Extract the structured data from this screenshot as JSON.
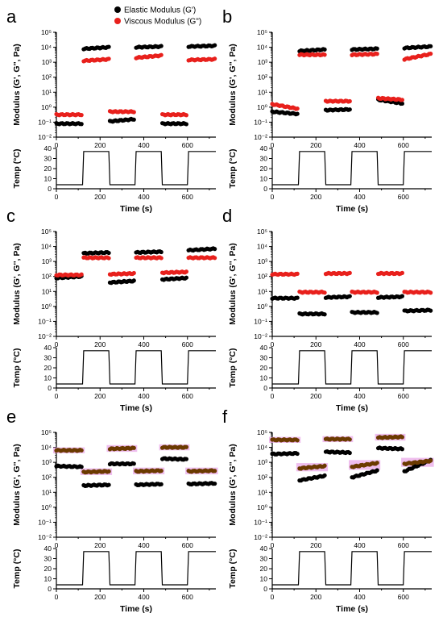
{
  "legend": {
    "elastic": "Elastic Modulus (G')",
    "viscous": "Viscous Modulus (G\")"
  },
  "colors": {
    "elastic": "#000000",
    "viscous": "#e8201c",
    "highlight": "#e9a8e8",
    "overlap": "#6b3a00"
  },
  "chart_data": [
    {
      "panel": "a",
      "type": "scatter",
      "xlabel": "Time (s)",
      "ylabel": "Modulus (G', G'', Pa)",
      "y2label": "Temp (°C)",
      "xlim": [
        0,
        730
      ],
      "ylim_log": [
        -2,
        5
      ],
      "temp_ylim": [
        0,
        40
      ],
      "xticks": [
        "0",
        "200",
        "400",
        "600"
      ],
      "yticks": [
        "10⁻²",
        "10⁻¹",
        "10⁰",
        "10¹",
        "10²",
        "10³",
        "10⁴",
        "10⁵"
      ],
      "temp_yticks": [
        "0",
        "10",
        "20",
        "30",
        "40"
      ],
      "highlight": false,
      "series": [
        {
          "name": "Elastic Modulus (G')",
          "segments": [
            [
              -1.1,
              -1.1
            ],
            [
              3.9,
              4.0
            ],
            [
              -0.95,
              -0.8
            ],
            [
              4.0,
              4.05
            ],
            [
              -1.1,
              -1.1
            ],
            [
              4.05,
              4.1
            ]
          ]
        },
        {
          "name": "Viscous Modulus (G\")",
          "segments": [
            [
              -0.5,
              -0.5
            ],
            [
              3.1,
              3.2
            ],
            [
              -0.3,
              -0.3
            ],
            [
              3.3,
              3.45
            ],
            [
              -0.5,
              -0.5
            ],
            [
              3.15,
              3.2
            ]
          ]
        }
      ],
      "temperature": [
        [
          0,
          4
        ],
        [
          120,
          4
        ],
        [
          125,
          37
        ],
        [
          240,
          37
        ],
        [
          245,
          4
        ],
        [
          360,
          4
        ],
        [
          365,
          37
        ],
        [
          480,
          37
        ],
        [
          485,
          4
        ],
        [
          600,
          4
        ],
        [
          605,
          37
        ],
        [
          730,
          37
        ]
      ]
    },
    {
      "panel": "b",
      "type": "scatter",
      "xlabel": "Time (s)",
      "ylabel": "Modulus (G', G'', Pa)",
      "y2label": "Temp (°C)",
      "xlim": [
        0,
        730
      ],
      "ylim_log": [
        -2,
        5
      ],
      "temp_ylim": [
        0,
        40
      ],
      "xticks": [
        "0",
        "200",
        "400",
        "600"
      ],
      "yticks": [
        "10⁻²",
        "10⁻¹",
        "10⁰",
        "10¹",
        "10²",
        "10³",
        "10⁴",
        "10⁵"
      ],
      "temp_yticks": [
        "0",
        "10",
        "20",
        "30",
        "40"
      ],
      "highlight": false,
      "series": [
        {
          "name": "Elastic Modulus (G')",
          "segments": [
            [
              -0.3,
              -0.45
            ],
            [
              3.75,
              3.85
            ],
            [
              -0.2,
              -0.15
            ],
            [
              3.85,
              3.9
            ],
            [
              0.5,
              0.25
            ],
            [
              3.95,
              4.05
            ]
          ]
        },
        {
          "name": "Viscous Modulus (G\")",
          "segments": [
            [
              0.2,
              -0.1
            ],
            [
              3.5,
              3.5
            ],
            [
              0.4,
              0.4
            ],
            [
              3.5,
              3.55
            ],
            [
              0.6,
              0.5
            ],
            [
              3.2,
              3.55
            ]
          ]
        }
      ],
      "temperature": [
        [
          0,
          4
        ],
        [
          120,
          4
        ],
        [
          125,
          37
        ],
        [
          240,
          37
        ],
        [
          245,
          4
        ],
        [
          360,
          4
        ],
        [
          365,
          37
        ],
        [
          480,
          37
        ],
        [
          485,
          4
        ],
        [
          600,
          4
        ],
        [
          605,
          37
        ],
        [
          730,
          37
        ]
      ]
    },
    {
      "panel": "c",
      "type": "scatter",
      "xlabel": "Time (s)",
      "ylabel": "Modulus (G', G'', Pa)",
      "y2label": "Temp (°C)",
      "xlim": [
        0,
        730
      ],
      "ylim_log": [
        -2,
        5
      ],
      "temp_ylim": [
        0,
        40
      ],
      "xticks": [
        "0",
        "200",
        "400",
        "600"
      ],
      "yticks": [
        "10⁻²",
        "10⁻¹",
        "10⁰",
        "10¹",
        "10²",
        "10³",
        "10⁴",
        "10⁵"
      ],
      "temp_yticks": [
        "0",
        "10",
        "20",
        "30",
        "40"
      ],
      "highlight": false,
      "series": [
        {
          "name": "Elastic Modulus (G')",
          "segments": [
            [
              1.9,
              2.0
            ],
            [
              3.55,
              3.6
            ],
            [
              1.6,
              1.7
            ],
            [
              3.6,
              3.65
            ],
            [
              1.8,
              1.9
            ],
            [
              3.75,
              3.85
            ]
          ]
        },
        {
          "name": "Viscous Modulus (G\")",
          "segments": [
            [
              2.1,
              2.1
            ],
            [
              3.25,
              3.25
            ],
            [
              2.15,
              2.2
            ],
            [
              3.25,
              3.25
            ],
            [
              2.25,
              2.3
            ],
            [
              3.25,
              3.25
            ]
          ]
        }
      ],
      "temperature": [
        [
          0,
          4
        ],
        [
          120,
          4
        ],
        [
          125,
          37
        ],
        [
          240,
          37
        ],
        [
          245,
          4
        ],
        [
          360,
          4
        ],
        [
          365,
          37
        ],
        [
          480,
          37
        ],
        [
          485,
          4
        ],
        [
          600,
          4
        ],
        [
          605,
          37
        ],
        [
          730,
          37
        ]
      ]
    },
    {
      "panel": "d",
      "type": "scatter",
      "xlabel": "Time (s)",
      "ylabel": "Modulus (G', G'', Pa)",
      "y2label": "Temp (°C)",
      "xlim": [
        0,
        730
      ],
      "ylim_log": [
        -2,
        5
      ],
      "temp_ylim": [
        0,
        40
      ],
      "xticks": [
        "0",
        "200",
        "400",
        "600"
      ],
      "yticks": [
        "10⁻²",
        "10⁻¹",
        "10⁰",
        "10¹",
        "10²",
        "10³",
        "10⁴",
        "10⁵"
      ],
      "temp_yticks": [
        "0",
        "10",
        "20",
        "30",
        "40"
      ],
      "highlight": false,
      "series": [
        {
          "name": "Elastic Modulus (G')",
          "segments": [
            [
              0.55,
              0.55
            ],
            [
              -0.5,
              -0.5
            ],
            [
              0.6,
              0.65
            ],
            [
              -0.4,
              -0.4
            ],
            [
              0.6,
              0.65
            ],
            [
              -0.3,
              -0.25
            ]
          ]
        },
        {
          "name": "Viscous Modulus (G\")",
          "segments": [
            [
              2.15,
              2.15
            ],
            [
              0.95,
              0.95
            ],
            [
              2.2,
              2.2
            ],
            [
              0.95,
              0.95
            ],
            [
              2.2,
              2.2
            ],
            [
              0.95,
              0.95
            ]
          ]
        }
      ],
      "temperature": [
        [
          0,
          4
        ],
        [
          120,
          4
        ],
        [
          125,
          37
        ],
        [
          240,
          37
        ],
        [
          245,
          4
        ],
        [
          360,
          4
        ],
        [
          365,
          37
        ],
        [
          480,
          37
        ],
        [
          485,
          4
        ],
        [
          600,
          4
        ],
        [
          605,
          37
        ],
        [
          730,
          37
        ]
      ]
    },
    {
      "panel": "e",
      "type": "scatter",
      "xlabel": "Time (s)",
      "ylabel": "Modulus (G', G'', Pa)",
      "y2label": "Temp (°C)",
      "xlim": [
        0,
        730
      ],
      "ylim_log": [
        -2,
        5
      ],
      "temp_ylim": [
        0,
        40
      ],
      "xticks": [
        "0",
        "200",
        "400",
        "600"
      ],
      "yticks": [
        "10⁻²",
        "10⁻¹",
        "10⁰",
        "10¹",
        "10²",
        "10³",
        "10⁴",
        "10⁵"
      ],
      "temp_yticks": [
        "0",
        "10",
        "20",
        "30",
        "40"
      ],
      "highlight": true,
      "series": [
        {
          "name": "Elastic Modulus (G')",
          "segments": [
            [
              2.75,
              2.7
            ],
            [
              1.45,
              1.5
            ],
            [
              2.9,
              2.9
            ],
            [
              1.5,
              1.55
            ],
            [
              3.25,
              3.2
            ],
            [
              1.55,
              1.6
            ]
          ]
        },
        {
          "name": "Viscous Modulus (G\")",
          "segments": [
            [
              3.8,
              3.8
            ],
            [
              2.35,
              2.4
            ],
            [
              3.9,
              3.95
            ],
            [
              2.4,
              2.45
            ],
            [
              4.0,
              4.0
            ],
            [
              2.4,
              2.45
            ]
          ]
        }
      ],
      "temperature": [
        [
          0,
          4
        ],
        [
          120,
          4
        ],
        [
          125,
          37
        ],
        [
          240,
          37
        ],
        [
          245,
          4
        ],
        [
          360,
          4
        ],
        [
          365,
          37
        ],
        [
          480,
          37
        ],
        [
          485,
          4
        ],
        [
          600,
          4
        ],
        [
          605,
          37
        ],
        [
          730,
          37
        ]
      ]
    },
    {
      "panel": "f",
      "type": "scatter",
      "xlabel": "Time (s)",
      "ylabel": "Modulus (G', G'', Pa)",
      "y2label": "Temp (°C)",
      "xlim": [
        0,
        730
      ],
      "ylim_log": [
        -2,
        5
      ],
      "temp_ylim": [
        0,
        40
      ],
      "xticks": [
        "0",
        "200",
        "400",
        "600"
      ],
      "yticks": [
        "10⁻²",
        "10⁻¹",
        "10⁰",
        "10¹",
        "10²",
        "10³",
        "10⁴",
        "10⁵"
      ],
      "temp_yticks": [
        "0",
        "10",
        "20",
        "30",
        "40"
      ],
      "highlight": true,
      "series": [
        {
          "name": "Elastic Modulus (G')",
          "segments": [
            [
              3.55,
              3.6
            ],
            [
              1.8,
              2.1
            ],
            [
              3.7,
              3.65
            ],
            [
              2.0,
              2.45
            ],
            [
              3.95,
              3.9
            ],
            [
              2.4,
              3.15
            ]
          ]
        },
        {
          "name": "Viscous Modulus (G\")",
          "segments": [
            [
              4.5,
              4.5
            ],
            [
              2.6,
              2.75
            ],
            [
              4.55,
              4.55
            ],
            [
              2.7,
              2.95
            ],
            [
              4.65,
              4.7
            ],
            [
              2.9,
              3.1
            ]
          ]
        }
      ],
      "temperature": [
        [
          0,
          4
        ],
        [
          120,
          4
        ],
        [
          125,
          37
        ],
        [
          240,
          37
        ],
        [
          245,
          4
        ],
        [
          360,
          4
        ],
        [
          365,
          37
        ],
        [
          480,
          37
        ],
        [
          485,
          4
        ],
        [
          600,
          4
        ],
        [
          605,
          37
        ],
        [
          730,
          37
        ]
      ]
    }
  ]
}
